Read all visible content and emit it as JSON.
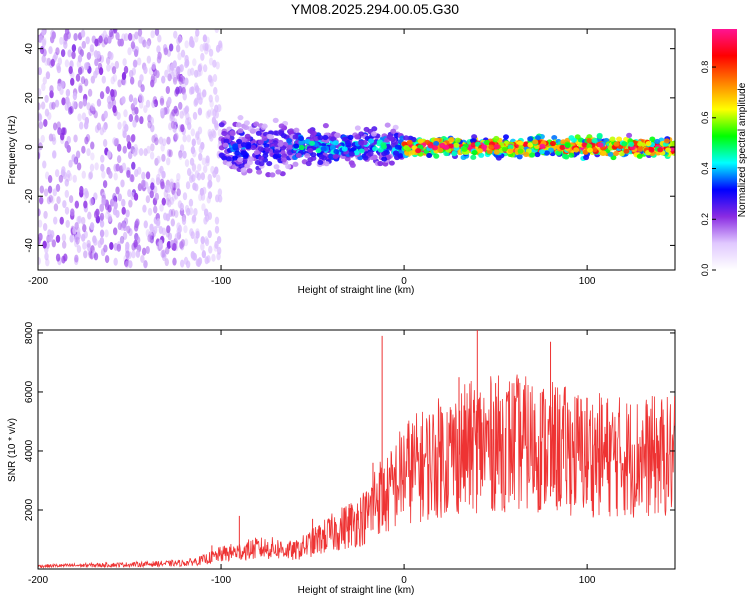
{
  "title": "YM08.2025.294.00.05.G30",
  "colors": {
    "snr_line": "#ee3333",
    "axis": "#000000",
    "background": "#ffffff"
  },
  "chart_data": [
    {
      "type": "heatmap",
      "name": "spectrogram",
      "xlabel": "Height of straight line (km)",
      "ylabel": "Frequency (Hz)",
      "xlim": [
        -200,
        148
      ],
      "ylim": [
        -50,
        48
      ],
      "xticks": [
        -200,
        -100,
        0,
        100
      ],
      "yticks": [
        -40,
        -20,
        0,
        20,
        40
      ],
      "colorbar": {
        "label": "Normalized spectral amplitude",
        "range": [
          0,
          0.95
        ],
        "ticks": [
          0.0,
          0.2,
          0.4,
          0.6,
          0.8
        ],
        "colormap": [
          "#ffffff",
          "#e0c8ff",
          "#8a2be2",
          "#0000ff",
          "#00ffff",
          "#00ff00",
          "#ffff00",
          "#ff8000",
          "#ff0000",
          "#ff1493"
        ]
      },
      "description_of_structure": [
        {
          "x_range": [
            -200,
            -120
          ],
          "freq_spread": 48,
          "amplitude": 0.15
        },
        {
          "x_range": [
            -120,
            -100
          ],
          "freq_spread": 48,
          "amplitude": 0.05
        },
        {
          "x_range": [
            -100,
            -60
          ],
          "freq_spread": 12,
          "amplitude": 0.3
        },
        {
          "x_range": [
            -60,
            0
          ],
          "freq_spread": 7,
          "amplitude": 0.4
        },
        {
          "x_range": [
            0,
            148
          ],
          "freq_spread": 4,
          "amplitude": 0.85
        }
      ]
    },
    {
      "type": "line",
      "name": "snr",
      "xlabel": "Height of straight line (km)",
      "ylabel": "SNR (10 * v/v)",
      "xlim": [
        -200,
        148
      ],
      "ylim": [
        0,
        8100
      ],
      "xticks": [
        -200,
        -100,
        0,
        100
      ],
      "yticks": [
        2000,
        4000,
        6000,
        8000
      ],
      "envelope": {
        "x": [
          -200,
          -150,
          -120,
          -110,
          -100,
          -90,
          -80,
          -70,
          -60,
          -50,
          -40,
          -30,
          -20,
          -15,
          -10,
          0,
          10,
          20,
          30,
          40,
          60,
          80,
          100,
          120,
          148
        ],
        "y": [
          100,
          150,
          200,
          300,
          500,
          600,
          700,
          700,
          600,
          900,
          1200,
          1500,
          1800,
          2500,
          2400,
          3300,
          3500,
          3800,
          4000,
          4200,
          4300,
          4100,
          3900,
          3800,
          3800
        ]
      },
      "spikes": [
        {
          "x": -105,
          "y": 800
        },
        {
          "x": -90,
          "y": 1800
        },
        {
          "x": -50,
          "y": 1700
        },
        {
          "x": -30,
          "y": 2200
        },
        {
          "x": -17,
          "y": 3600
        },
        {
          "x": -12,
          "y": 7900
        },
        {
          "x": 20,
          "y": 5500
        },
        {
          "x": 30,
          "y": 6500
        },
        {
          "x": 40,
          "y": 8100
        },
        {
          "x": 50,
          "y": 6300
        },
        {
          "x": 80,
          "y": 7700
        },
        {
          "x": 100,
          "y": 5800
        },
        {
          "x": 130,
          "y": 4700
        }
      ]
    }
  ]
}
